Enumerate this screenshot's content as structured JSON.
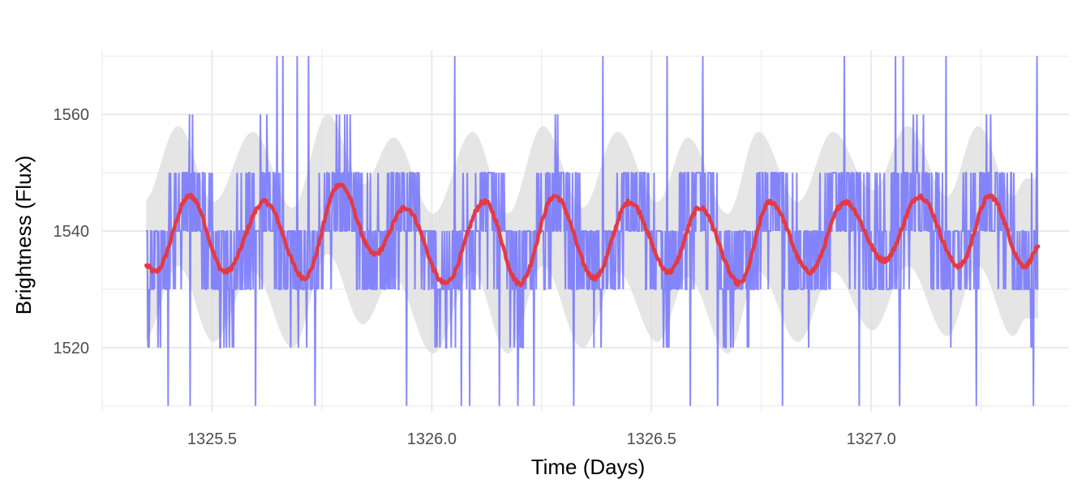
{
  "chart_data": {
    "type": "line",
    "title": "",
    "xlabel": "Time (Days)",
    "ylabel": "Brightness (Flux)",
    "xlim": [
      1325.25,
      1327.45
    ],
    "ylim": [
      1509,
      1571
    ],
    "x_ticks": [
      1325.5,
      1326.0,
      1326.5,
      1327.0
    ],
    "x_tick_labels": [
      "1325.5",
      "1326.0",
      "1326.5",
      "1327.0"
    ],
    "y_ticks": [
      1520,
      1540,
      1560
    ],
    "y_tick_labels": [
      "1520",
      "1540",
      "1560"
    ],
    "grid": true,
    "legend": "none",
    "x_range": [
      1325.35,
      1327.38
    ],
    "raw_series_levels": [
      1510,
      1520,
      1530,
      1540,
      1550,
      1560,
      1570
    ],
    "smoothed_extrema": [
      {
        "x": 1325.35,
        "y": 1534
      },
      {
        "x": 1325.37,
        "y": 1533
      },
      {
        "x": 1325.45,
        "y": 1546
      },
      {
        "x": 1325.53,
        "y": 1533
      },
      {
        "x": 1325.62,
        "y": 1545
      },
      {
        "x": 1325.71,
        "y": 1532
      },
      {
        "x": 1325.79,
        "y": 1548
      },
      {
        "x": 1325.87,
        "y": 1536
      },
      {
        "x": 1325.94,
        "y": 1544
      },
      {
        "x": 1326.03,
        "y": 1531
      },
      {
        "x": 1326.12,
        "y": 1545
      },
      {
        "x": 1326.2,
        "y": 1531
      },
      {
        "x": 1326.28,
        "y": 1546
      },
      {
        "x": 1326.37,
        "y": 1532
      },
      {
        "x": 1326.45,
        "y": 1545
      },
      {
        "x": 1326.54,
        "y": 1533
      },
      {
        "x": 1326.61,
        "y": 1544
      },
      {
        "x": 1326.7,
        "y": 1531
      },
      {
        "x": 1326.77,
        "y": 1545
      },
      {
        "x": 1326.86,
        "y": 1533
      },
      {
        "x": 1326.94,
        "y": 1545
      },
      {
        "x": 1327.03,
        "y": 1535
      },
      {
        "x": 1327.11,
        "y": 1546
      },
      {
        "x": 1327.2,
        "y": 1534
      },
      {
        "x": 1327.27,
        "y": 1546
      },
      {
        "x": 1327.35,
        "y": 1534
      },
      {
        "x": 1327.38,
        "y": 1537
      }
    ],
    "band_halfwidth": 10,
    "colors": {
      "raw": "#6b6bff",
      "smooth": "#e33a45",
      "band": "#dcdcdc",
      "grid": "#ebebeb"
    }
  }
}
